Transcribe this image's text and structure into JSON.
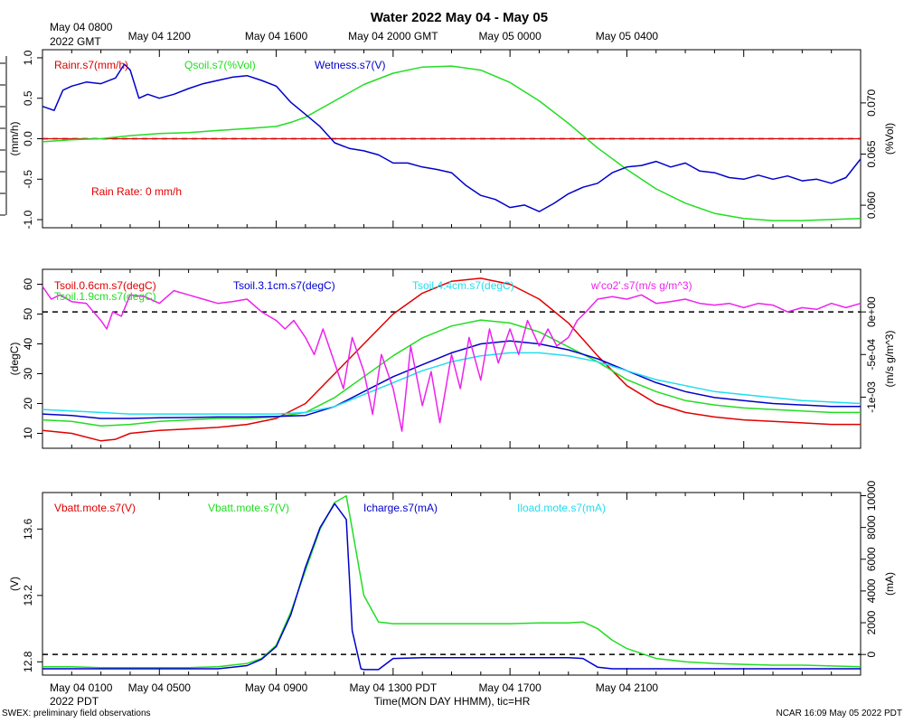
{
  "title": "Water 2022 May 04 - May 05",
  "top_time_labels": [
    "May 04 1200",
    "May 04 1600",
    "May 04 2000 GMT",
    "May 05 0000",
    "May 05 0400"
  ],
  "top_left_time": [
    "May 04 0800",
    "2022 GMT"
  ],
  "bottom_time_labels": [
    "May 04 0500",
    "May 04 0900",
    "May 04 1300 PDT",
    "May 04 1700",
    "May 04 2100"
  ],
  "bottom_left_time": [
    "May 04 0100",
    "2022 PDT"
  ],
  "xaxis_title": "Time(MON DAY HHMM), tic=HR",
  "footer_left": "SWEX: preliminary field observations",
  "footer_right": "NCAR 16:09 May 05 2022 PDT",
  "colors": {
    "red": "#e00000",
    "green": "#22dd22",
    "blue": "#0000cc",
    "cyan": "#22ddee",
    "magenta": "#ee22ee",
    "black": "#000000"
  },
  "chart_data": [
    {
      "id": "p1",
      "type": "line",
      "x_range_hours": [
        0,
        28
      ],
      "yleft": {
        "label": "(mm/h)",
        "range": [
          -1.1,
          1.1
        ],
        "ticks": [
          1.0,
          0.5,
          0.0,
          -0.5,
          -1.0
        ],
        "tick_labels": [
          "1.0",
          "0.5",
          "0.0",
          "-0.5",
          "-1.0"
        ]
      },
      "yright": {
        "label": "(%Vol)",
        "range": [
          0.0578,
          0.0752
        ],
        "ticks": [
          0.06,
          0.065,
          0.07
        ],
        "tick_labels": [
          "0.060",
          "0.065",
          "0.070"
        ]
      },
      "hline": {
        "axis": "left",
        "value": 0.0
      },
      "legend": [
        {
          "text": "Rainr.s7(mm/h)",
          "color": "red"
        },
        {
          "text": "Qsoil.s7(%Vol)",
          "color": "green"
        },
        {
          "text": "Wetness.s7(V)",
          "color": "blue"
        }
      ],
      "annotation": {
        "text": "Rain Rate: 0 mm/h"
      },
      "series": [
        {
          "name": "Rainr.s7(mm/h)",
          "color": "red",
          "axis": "left",
          "x": [
            0,
            28
          ],
          "y": [
            0.0,
            0.0
          ]
        },
        {
          "name": "Qsoil.s7(%Vol)",
          "color": "green",
          "axis": "right",
          "x": [
            0,
            1,
            2,
            3,
            4,
            5,
            6,
            7,
            8,
            8.5,
            9,
            10,
            11,
            12,
            13,
            14,
            15,
            16,
            17,
            18,
            19,
            20,
            21,
            22,
            23,
            24,
            25,
            26,
            27,
            28
          ],
          "y": [
            0.0662,
            0.0664,
            0.0665,
            0.0668,
            0.067,
            0.0671,
            0.0673,
            0.0675,
            0.0677,
            0.0681,
            0.0686,
            0.0702,
            0.0718,
            0.0729,
            0.0735,
            0.0736,
            0.0732,
            0.072,
            0.0702,
            0.068,
            0.0656,
            0.0635,
            0.0616,
            0.0602,
            0.0592,
            0.0587,
            0.0585,
            0.0585,
            0.0586,
            0.0587
          ]
        },
        {
          "name": "Wetness.s7(V)",
          "color": "blue",
          "axis": "left",
          "x": [
            0,
            0.4,
            0.7,
            1,
            1.5,
            2,
            2.5,
            2.8,
            3,
            3.3,
            3.6,
            4,
            4.5,
            5,
            5.5,
            6,
            6.5,
            7,
            7.5,
            8,
            8.5,
            9,
            9.5,
            10,
            10.5,
            11,
            11.5,
            12,
            12.5,
            13,
            13.5,
            14,
            14.5,
            15,
            15.5,
            16,
            16.5,
            17,
            17.5,
            18,
            18.5,
            19,
            19.5,
            20,
            20.5,
            21,
            21.5,
            22,
            22.5,
            23,
            23.5,
            24,
            24.5,
            25,
            25.5,
            26,
            26.5,
            27,
            27.5,
            28
          ],
          "y": [
            0.4,
            0.35,
            0.6,
            0.65,
            0.7,
            0.68,
            0.75,
            0.92,
            0.85,
            0.5,
            0.55,
            0.5,
            0.55,
            0.62,
            0.68,
            0.72,
            0.76,
            0.78,
            0.72,
            0.65,
            0.45,
            0.3,
            0.15,
            -0.05,
            -0.12,
            -0.15,
            -0.2,
            -0.3,
            -0.3,
            -0.35,
            -0.38,
            -0.42,
            -0.58,
            -0.7,
            -0.75,
            -0.85,
            -0.82,
            -0.9,
            -0.8,
            -0.68,
            -0.6,
            -0.55,
            -0.42,
            -0.35,
            -0.33,
            -0.28,
            -0.35,
            -0.3,
            -0.4,
            -0.42,
            -0.48,
            -0.5,
            -0.45,
            -0.5,
            -0.46,
            -0.52,
            -0.5,
            -0.55,
            -0.48,
            -0.25
          ]
        }
      ]
    },
    {
      "id": "p2",
      "type": "line",
      "x_range_hours": [
        0,
        28
      ],
      "yleft": {
        "label": "(degC)",
        "range": [
          5,
          65
        ],
        "ticks": [
          10,
          20,
          30,
          40,
          50,
          60
        ],
        "tick_labels": [
          "10",
          "20",
          "30",
          "40",
          "50",
          "60"
        ]
      },
      "yright": {
        "label": "(m/s g/m^3)",
        "range": [
          -0.0016,
          0.0005
        ],
        "ticks": [
          0,
          -0.0005,
          -0.001
        ],
        "tick_labels": [
          "0e+00",
          "-5e-04",
          "-1e-03"
        ]
      },
      "hline": {
        "axis": "right",
        "value": 0.0
      },
      "legend": [
        {
          "text": "Tsoil.0.6cm.s7(degC)",
          "color": "red"
        },
        {
          "text": "Tsoil.1.9cm.s7(degC)",
          "color": "green"
        },
        {
          "text": "Tsoil.3.1cm.s7(degC)",
          "color": "blue"
        },
        {
          "text": "Tsoil.4.4cm.s7(degC)",
          "color": "cyan"
        },
        {
          "text": "w'co2'.s7(m/s g/m^3)",
          "color": "magenta"
        }
      ],
      "series": [
        {
          "name": "Tsoil.0.6cm.s7(degC)",
          "color": "red",
          "axis": "left",
          "x": [
            0,
            1,
            2,
            2.5,
            3,
            4,
            5,
            6,
            7,
            8,
            9,
            10,
            11,
            12,
            13,
            14,
            15,
            16,
            17,
            18,
            19,
            20,
            21,
            22,
            23,
            24,
            25,
            26,
            27,
            28
          ],
          "y": [
            11,
            10,
            7.5,
            8,
            10,
            11,
            11.5,
            12,
            13,
            15,
            20,
            30,
            40,
            50,
            57,
            61,
            62,
            60,
            55,
            47,
            36,
            26,
            20,
            17,
            15.5,
            14.5,
            14,
            13.5,
            13,
            13
          ]
        },
        {
          "name": "Tsoil.1.9cm.s7(degC)",
          "color": "green",
          "axis": "left",
          "x": [
            0,
            1,
            2,
            3,
            4,
            5,
            6,
            7,
            8,
            9,
            10,
            11,
            12,
            13,
            14,
            15,
            16,
            17,
            18,
            19,
            20,
            21,
            22,
            23,
            24,
            25,
            26,
            27,
            28
          ],
          "y": [
            14.5,
            14,
            12.5,
            13,
            14,
            14.5,
            15,
            15,
            15.5,
            17,
            22,
            29,
            36,
            42,
            46,
            48,
            47,
            44,
            39,
            34,
            28,
            24,
            21,
            19.5,
            18.5,
            18,
            17.5,
            17,
            17
          ]
        },
        {
          "name": "Tsoil.3.1cm.s7(degC)",
          "color": "blue",
          "axis": "left",
          "x": [
            0,
            1,
            2,
            3,
            4,
            5,
            6,
            7,
            8,
            9,
            10,
            11,
            12,
            13,
            14,
            15,
            16,
            17,
            18,
            19,
            20,
            21,
            22,
            23,
            24,
            25,
            26,
            27,
            28
          ],
          "y": [
            16.5,
            16,
            15,
            15,
            15.2,
            15.3,
            15.5,
            15.5,
            15.7,
            16,
            19,
            24,
            29,
            33,
            37,
            40,
            41,
            40,
            38,
            35,
            31,
            27,
            24,
            22,
            21,
            20,
            19.5,
            19,
            19
          ]
        },
        {
          "name": "Tsoil.4.4cm.s7(degC)",
          "color": "cyan",
          "axis": "left",
          "x": [
            0,
            1,
            2,
            3,
            4,
            5,
            6,
            7,
            8,
            9,
            10,
            11,
            12,
            13,
            14,
            15,
            16,
            17,
            18,
            19,
            20,
            21,
            22,
            23,
            24,
            25,
            26,
            27,
            28
          ],
          "y": [
            18,
            17.5,
            17,
            16.5,
            16.5,
            16.5,
            16.5,
            16.5,
            16.5,
            17,
            19,
            23,
            27,
            31,
            34,
            36,
            37,
            37,
            36,
            34,
            31,
            28,
            26,
            24,
            23,
            22,
            21,
            20.5,
            20
          ]
        },
        {
          "name": "w'co2'.s7(m/s g/m^3)",
          "color": "magenta",
          "axis": "right",
          "x": [
            0,
            0.3,
            0.6,
            1,
            1.5,
            2,
            2.2,
            2.4,
            2.7,
            3,
            3.5,
            4,
            4.5,
            5,
            5.5,
            6,
            6.5,
            7,
            7.5,
            8,
            8.3,
            8.6,
            9,
            9.3,
            9.6,
            10,
            10.3,
            10.6,
            11,
            11.3,
            11.6,
            12,
            12.3,
            12.6,
            13,
            13.3,
            13.6,
            14,
            14.3,
            14.6,
            15,
            15.3,
            15.6,
            16,
            16.3,
            16.6,
            17,
            17.3,
            17.6,
            18,
            18.3,
            18.6,
            19,
            19.5,
            20,
            20.5,
            21,
            21.5,
            22,
            22.5,
            23,
            23.5,
            24,
            24.5,
            25,
            25.5,
            26,
            26.5,
            27,
            27.5,
            28
          ],
          "y": [
            0.0003,
            0.00015,
            0.0002,
            0.00012,
            0.0001,
            -0.0001,
            -0.0002,
            0.0,
            -5e-05,
            0.0002,
            0.00018,
            0.0001,
            0.00025,
            0.0002,
            0.00015,
            0.0001,
            0.00012,
            0.00015,
            0.0,
            -0.0001,
            -0.0002,
            -0.0001,
            -0.0003,
            -0.0005,
            -0.0002,
            -0.0006,
            -0.0009,
            -0.0003,
            -0.0007,
            -0.0012,
            -0.0005,
            -0.0009,
            -0.0014,
            -0.0004,
            -0.0011,
            -0.0007,
            -0.0013,
            -0.0005,
            -0.0009,
            -0.0003,
            -0.0008,
            -0.0002,
            -0.0006,
            -0.0002,
            -0.0005,
            -0.0001,
            -0.0004,
            -0.0002,
            -0.0004,
            -0.0003,
            -0.0001,
            0.0,
            0.00015,
            0.00018,
            0.00015,
            0.0002,
            0.0001,
            0.00012,
            0.00015,
            0.0001,
            8e-05,
            0.0001,
            5e-05,
            0.0001,
            8e-05,
            0.0,
            5e-05,
            3e-05,
            0.0001,
            5e-05,
            0.0001
          ]
        }
      ]
    },
    {
      "id": "p3",
      "type": "line",
      "x_range_hours": [
        0,
        28
      ],
      "yleft": {
        "label": "(V)",
        "range": [
          12.72,
          13.82
        ],
        "ticks": [
          12.8,
          13.2,
          13.6
        ],
        "tick_labels": [
          "12.8",
          "13.2",
          "13.6"
        ]
      },
      "yright": {
        "label": "(mA)",
        "range": [
          -1300,
          10200
        ],
        "ticks": [
          0,
          2000,
          4000,
          6000,
          8000,
          10000
        ],
        "tick_labels": [
          "0",
          "2000",
          "4000",
          "6000",
          "8000",
          "10000"
        ]
      },
      "hline": {
        "axis": "right",
        "value": 0
      },
      "legend": [
        {
          "text": "Vbatt.mote.s7(V)",
          "color": "red"
        },
        {
          "text": "Vbatt.mote.s7(V)",
          "color": "green"
        },
        {
          "text": "Icharge.s7(mA)",
          "color": "blue"
        },
        {
          "text": "Iload.mote.s7(mA)",
          "color": "cyan"
        }
      ],
      "series": [
        {
          "name": "Vbatt.mote.s7(V)",
          "color": "green",
          "axis": "left",
          "x": [
            0,
            1,
            2,
            3,
            4,
            5,
            6,
            7,
            7.5,
            8,
            8.5,
            9,
            9.5,
            10,
            10.4,
            10.6,
            11,
            11.5,
            12,
            13,
            14,
            15,
            16,
            17,
            18,
            18.5,
            19,
            19.5,
            20,
            21,
            22,
            23,
            24,
            25,
            26,
            27,
            28
          ],
          "y": [
            12.77,
            12.77,
            12.765,
            12.765,
            12.765,
            12.765,
            12.77,
            12.79,
            12.82,
            12.9,
            13.1,
            13.35,
            13.6,
            13.76,
            13.8,
            13.6,
            13.2,
            13.04,
            13.03,
            13.03,
            13.03,
            13.03,
            13.03,
            13.035,
            13.035,
            13.04,
            13.0,
            12.93,
            12.88,
            12.82,
            12.8,
            12.79,
            12.785,
            12.78,
            12.78,
            12.775,
            12.77
          ]
        },
        {
          "name": "Icharge.s7(mA)",
          "color": "blue",
          "axis": "right",
          "x": [
            0,
            1,
            2,
            3,
            4,
            5,
            6,
            7,
            7.5,
            8,
            8.5,
            9,
            9.5,
            10,
            10.4,
            10.6,
            10.9,
            11,
            11.5,
            12,
            13,
            14,
            15,
            16,
            17,
            18,
            18.5,
            19,
            19.5,
            20,
            21,
            22,
            23,
            24,
            25,
            26,
            27,
            28
          ],
          "y": [
            -900,
            -900,
            -900,
            -900,
            -900,
            -900,
            -900,
            -700,
            -300,
            500,
            2500,
            5500,
            8000,
            9500,
            8500,
            1500,
            -900,
            -950,
            -950,
            -250,
            -200,
            -200,
            -200,
            -200,
            -200,
            -200,
            -250,
            -800,
            -900,
            -900,
            -900,
            -900,
            -900,
            -900,
            -900,
            -900,
            -900,
            -900
          ]
        }
      ]
    }
  ]
}
